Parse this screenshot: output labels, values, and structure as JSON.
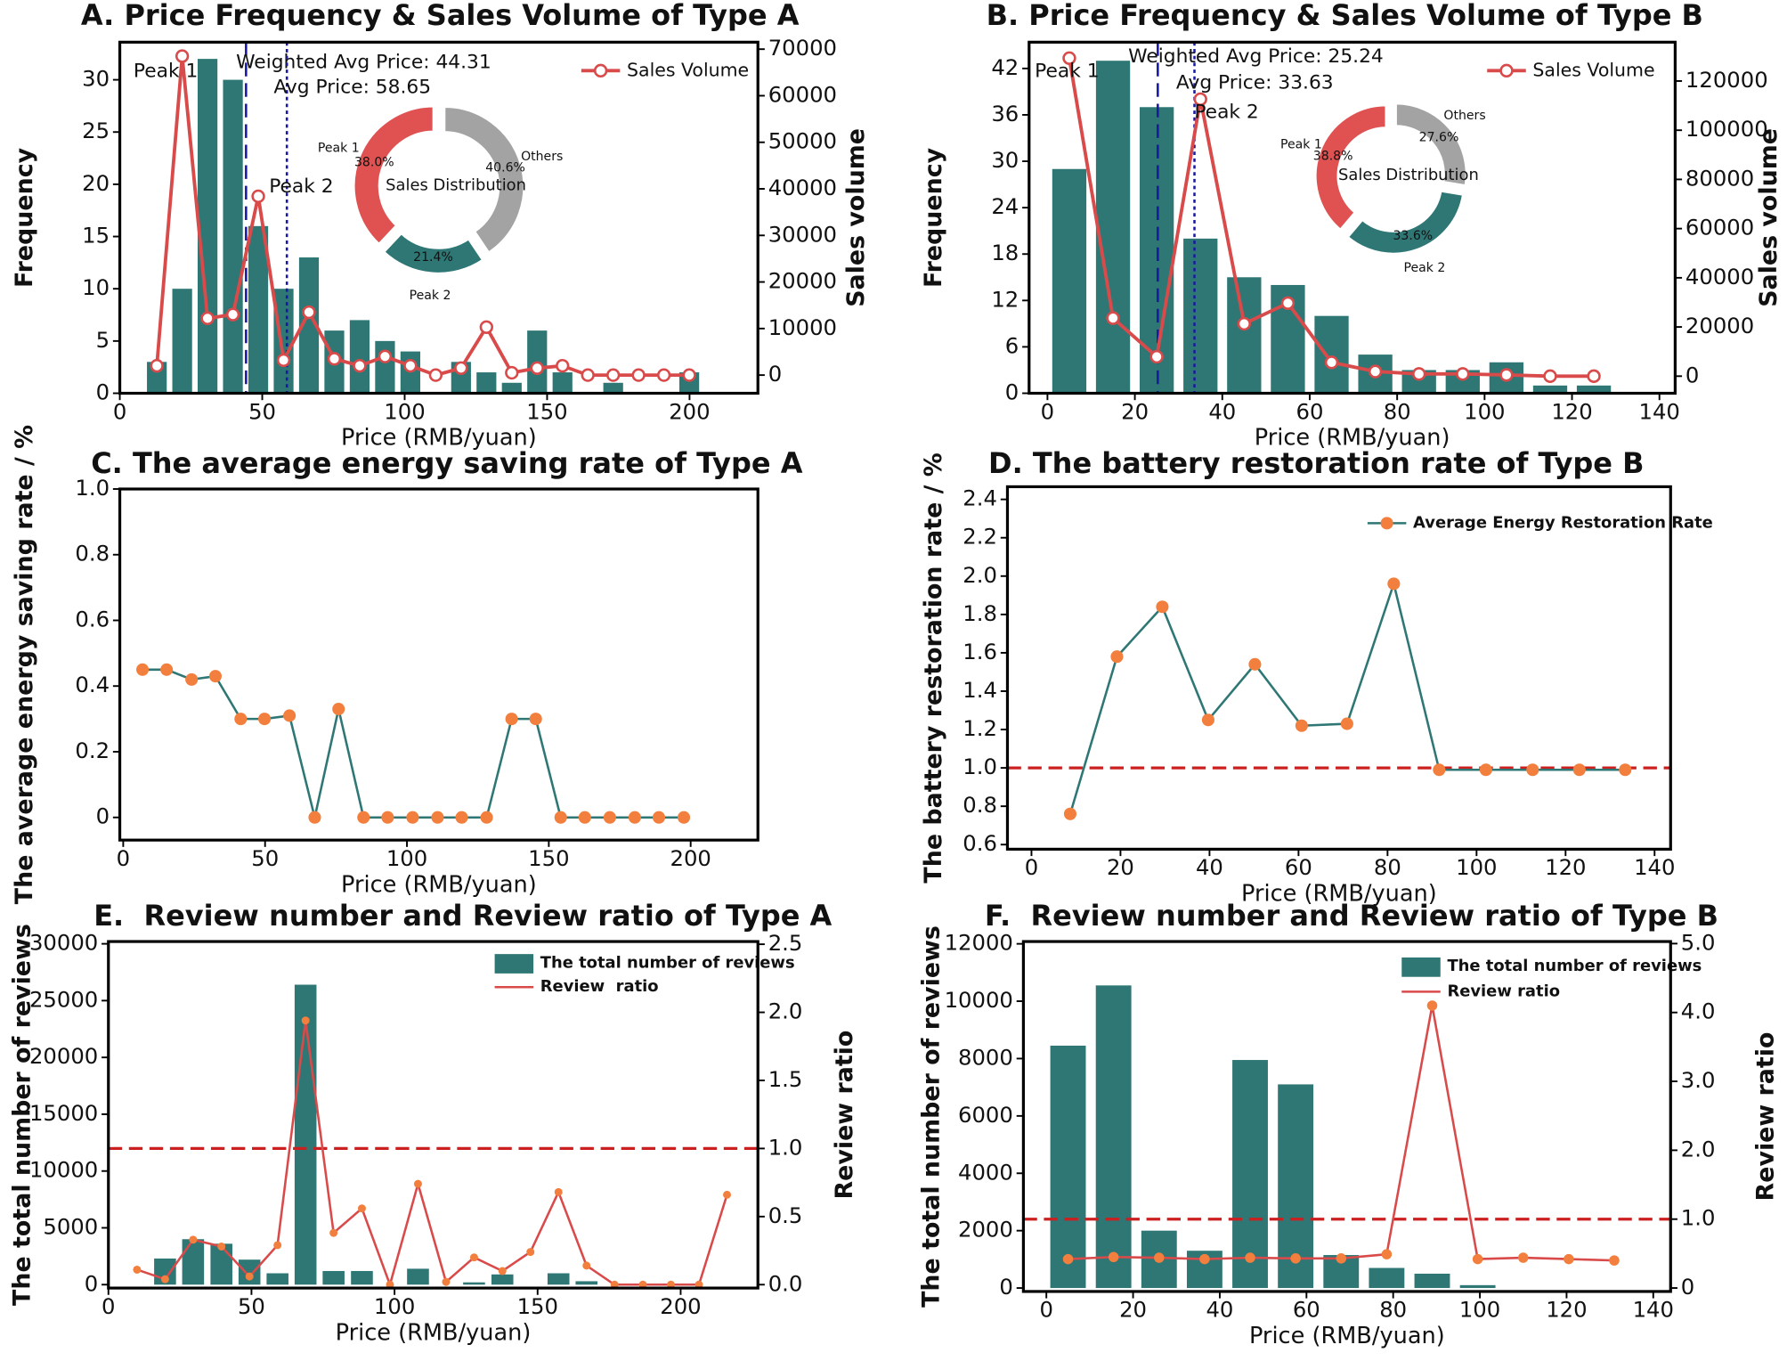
{
  "chart_data": [
    {
      "type": "bar",
      "title": "A. Price Frequency & Sales Volume of Type A",
      "xlabel": "Price (RMB/yuan)",
      "ylabel": "Frequency",
      "y2label": "Sales volume",
      "x": [
        13,
        21.9,
        30.8,
        39.7,
        48.6,
        57.5,
        66.4,
        75.3,
        84.2,
        93.1,
        102,
        110.9,
        119.8,
        128.7,
        137.6,
        146.5,
        155.4,
        164.3,
        173.2,
        182.1,
        191,
        199.9
      ],
      "series": [
        {
          "type": "bar",
          "color": "#2e7775",
          "values": [
            3,
            10,
            32,
            30,
            16,
            10,
            13,
            6,
            7,
            5,
            4,
            0,
            3,
            2,
            1,
            6,
            2,
            0,
            1,
            0,
            0,
            2
          ]
        },
        {
          "type": "line",
          "name": "Sales Volume",
          "color": "#d94a4a",
          "marker": "open",
          "axis": "y2",
          "values": [
            2000,
            68500,
            12200,
            13000,
            38400,
            3200,
            13500,
            3500,
            2000,
            4000,
            2000,
            0,
            1500,
            10300,
            500,
            1500,
            2000,
            0,
            0,
            0,
            0,
            0
          ]
        }
      ],
      "xlim": [
        0,
        224
      ],
      "xticks": [
        0,
        50,
        100,
        150,
        200
      ],
      "ylim": [
        0,
        33.6
      ],
      "yticks": [
        0,
        5,
        10,
        15,
        20,
        25,
        30
      ],
      "y2lim": [
        -3900,
        71500
      ],
      "y2ticks": [
        0,
        10000,
        20000,
        30000,
        40000,
        50000,
        60000,
        70000
      ],
      "legend": "upper right",
      "vlines": [
        {
          "value": 44.31,
          "label": "Weighted Avg Price: 44.31",
          "color": "#1a1aa0",
          "style": "dashed"
        },
        {
          "value": 58.65,
          "label": "Avg Price: 58.65",
          "color": "#1a1aa0",
          "style": "dotted"
        }
      ],
      "annotations": [
        "Peak 1",
        "Peak 2"
      ],
      "inset": {
        "type": "pie",
        "title": "Sales Distribution",
        "categories": [
          "Peak 1",
          "Peak 2",
          "Others"
        ],
        "values": [
          38.0,
          21.4,
          40.6
        ],
        "value_labels": [
          "38.0%",
          "21.4%",
          "40.6%"
        ],
        "colors": [
          "#e05252",
          "#2e7775",
          "#a3a3a3"
        ]
      }
    },
    {
      "type": "bar",
      "title": "B. Price Frequency & Sales Volume of Type B",
      "xlabel": "Price (RMB/yuan)",
      "ylabel": "Frequency",
      "y2label": "Sales volume",
      "x": [
        5,
        15,
        25,
        35,
        45,
        55,
        65,
        75,
        85,
        95,
        105,
        115,
        125
      ],
      "series": [
        {
          "type": "bar",
          "color": "#2e7775",
          "values": [
            29,
            43,
            37,
            20,
            15,
            14,
            10,
            5,
            3,
            3,
            4,
            1,
            1
          ]
        },
        {
          "type": "line",
          "name": "Sales Volume",
          "color": "#d94a4a",
          "marker": "open",
          "axis": "y2",
          "values": [
            129300,
            23600,
            7900,
            112600,
            21300,
            29700,
            5600,
            1900,
            900,
            900,
            500,
            0,
            0
          ]
        }
      ],
      "xlim": [
        -4.2,
        143.6
      ],
      "xticks": [
        0,
        20,
        40,
        60,
        80,
        100,
        120,
        140
      ],
      "ylim": [
        0,
        45.4
      ],
      "yticks": [
        0,
        6,
        12,
        18,
        24,
        30,
        36,
        42
      ],
      "y2lim": [
        -6950,
        135800
      ],
      "y2ticks": [
        0,
        20000,
        40000,
        60000,
        80000,
        100000,
        120000
      ],
      "legend": "upper right",
      "vlines": [
        {
          "value": 25.24,
          "label": "Weighted Avg Price: 25.24",
          "color": "#1a1aa0",
          "style": "dashed"
        },
        {
          "value": 33.63,
          "label": "Avg Price: 33.63",
          "color": "#1a1aa0",
          "style": "dotted"
        }
      ],
      "annotations": [
        "Peak 1",
        "Peak 2"
      ],
      "inset": {
        "type": "pie",
        "title": "Sales Distribution",
        "categories": [
          "Peak 1",
          "Peak 2",
          "Others"
        ],
        "values": [
          38.8,
          33.6,
          27.6
        ],
        "value_labels": [
          "38.8%",
          "33.6%",
          "27.6%"
        ],
        "colors": [
          "#e05252",
          "#2e7775",
          "#a3a3a3"
        ]
      }
    },
    {
      "type": "line",
      "title": "C. The average energy saving rate of Type A",
      "xlabel": "Price (RMB/yuan)",
      "ylabel": "The average energy saving rate / %",
      "x": [
        6.8,
        15.3,
        24.1,
        32.5,
        41.4,
        49.8,
        58.6,
        67.5,
        75.9,
        84.7,
        93.2,
        102,
        110.8,
        119.3,
        128.1,
        136.9,
        145.4,
        154.2,
        162.7,
        171.5,
        180.3,
        188.8,
        197.6
      ],
      "series": [
        {
          "type": "line",
          "color": "#2e7775",
          "marker": "filled",
          "marker_color": "#f27f3d",
          "values": [
            0.45,
            0.45,
            0.42,
            0.43,
            0.3,
            0.3,
            0.31,
            0,
            0.33,
            0,
            0,
            0,
            0,
            0,
            0,
            0.3,
            0.3,
            0,
            0,
            0,
            0,
            0,
            0
          ]
        }
      ],
      "xlim": [
        -1.2,
        223.7
      ],
      "xticks": [
        0,
        50,
        100,
        150,
        200
      ],
      "ylim": [
        -0.069,
        1.0
      ],
      "yticks": [
        0,
        0.2,
        0.4,
        0.6,
        0.8,
        {
          "value": 1,
          "label": "1.0"
        }
      ]
    },
    {
      "type": "line",
      "title": "D. The battery restoration rate of Type B",
      "xlabel": "Price (RMB/yuan)",
      "ylabel": "The battery restoration rate / %",
      "x": [
        8.7,
        19.2,
        29.4,
        39.7,
        50.2,
        60.7,
        70.9,
        81.4,
        91.6,
        102.1,
        112.6,
        123.1,
        133.4
      ],
      "series": [
        {
          "type": "line",
          "name": "Average Energy Restoration Rate",
          "color": "#2e7775",
          "marker": "filled",
          "marker_color": "#f27f3d",
          "values": [
            0.76,
            1.58,
            1.84,
            1.25,
            1.54,
            1.22,
            1.23,
            1.96,
            0.99,
            0.99,
            0.99,
            0.99,
            0.99
          ]
        }
      ],
      "xlim": [
        -5.4,
        143.6
      ],
      "xticks": [
        0,
        20,
        40,
        60,
        80,
        100,
        120,
        140
      ],
      "ylim": [
        0.576,
        2.466
      ],
      "yticks": [
        0.6,
        0.8,
        {
          "value": 1,
          "label": "1.0"
        },
        1.2,
        1.4,
        1.6,
        1.8,
        {
          "value": 2,
          "label": "2.0"
        },
        2.2,
        2.4
      ],
      "legend": "upper right",
      "hlines": [
        {
          "value": 1,
          "color": "#cc2020",
          "style": "dashed"
        }
      ]
    },
    {
      "type": "bar",
      "title": "E.  Review number and Review ratio of Type A",
      "xlabel": "Price (RMB/yuan)",
      "ylabel": "The total number of reviews",
      "y2label": "Review ratio",
      "x": [
        10,
        19.8,
        29.6,
        39.5,
        49.3,
        59.1,
        68.9,
        78.7,
        88.6,
        98.4,
        108.2,
        118,
        127.8,
        137.7,
        147.5,
        157.3,
        167.1,
        176.9,
        186.8,
        196.6,
        206.4,
        216.2
      ],
      "series": [
        {
          "type": "bar",
          "name": "The total number of reviews",
          "color": "#2e7775",
          "values": [
            0,
            2300,
            4000,
            3600,
            2200,
            1000,
            26400,
            1200,
            1200,
            0,
            1400,
            0,
            200,
            900,
            0,
            1000,
            300,
            0,
            0,
            0,
            0,
            0
          ]
        },
        {
          "type": "line",
          "name": "Review  ratio",
          "color": "#d94a4a",
          "marker": "filled",
          "marker_color": "#f27f3d",
          "axis": "y2",
          "values": [
            0.11,
            0.04,
            0.33,
            0.28,
            0.06,
            0.29,
            1.94,
            0.38,
            0.56,
            0,
            0.74,
            0.02,
            0.2,
            0.1,
            0.24,
            0.68,
            0.14,
            0,
            0,
            0,
            0,
            0.66
          ]
        }
      ],
      "xlim": [
        0,
        227
      ],
      "xticks": [
        0,
        50,
        100,
        150,
        200
      ],
      "ylim": [
        -300,
        30200
      ],
      "yticks": [
        0,
        5000,
        10000,
        15000,
        20000,
        25000,
        30000
      ],
      "y2lim": [
        -0.025,
        2.52
      ],
      "y2ticks": [
        {
          "value": 0,
          "label": "0.0"
        },
        0.5,
        {
          "value": 1,
          "label": "1.0"
        },
        1.5,
        {
          "value": 2,
          "label": "2.0"
        },
        2.5
      ],
      "legend": "upper right",
      "hlines": [
        {
          "value": 1,
          "color": "#cc2020",
          "style": "dashed",
          "axis": "y2"
        }
      ]
    },
    {
      "type": "bar",
      "title": "F.  Review number and Review ratio of Type B",
      "xlabel": "Price (RMB/yuan)",
      "ylabel": "The total number of reviews",
      "y2label": "Review ratio",
      "x": [
        5,
        15.5,
        26,
        36.5,
        47,
        57.5,
        68,
        78.5,
        89,
        99.5,
        110,
        120.5,
        131
      ],
      "series": [
        {
          "type": "bar",
          "name": "The total number of reviews",
          "color": "#2e7775",
          "values": [
            8450,
            10550,
            2000,
            1300,
            7950,
            7100,
            1150,
            700,
            500,
            100,
            null,
            null,
            null
          ]
        },
        {
          "type": "line",
          "name": "Review ratio",
          "color": "#d94a4a",
          "marker": "filled",
          "marker_color": "#f27f3d",
          "axis": "y2",
          "values": [
            0.42,
            0.45,
            0.44,
            0.42,
            0.44,
            0.43,
            0.43,
            0.49,
            4.1,
            0.42,
            0.44,
            0.42,
            0.4
          ]
        }
      ],
      "xlim": [
        -5.3,
        144
      ],
      "xticks": [
        0,
        20,
        40,
        60,
        80,
        100,
        120,
        140
      ],
      "ylim": [
        -120,
        12080
      ],
      "yticks": [
        0,
        2000,
        4000,
        6000,
        8000,
        10000,
        12000
      ],
      "y2lim": [
        -0.05,
        5.03
      ],
      "y2ticks": [
        0,
        {
          "value": 1,
          "label": "1.0"
        },
        {
          "value": 2,
          "label": "2.0"
        },
        {
          "value": 3,
          "label": "3.0"
        },
        {
          "value": 4,
          "label": "4.0"
        },
        {
          "value": 5,
          "label": "5.0"
        }
      ],
      "legend": "upper right",
      "hlines": [
        {
          "value": 1,
          "color": "#cc2020",
          "style": "dashed",
          "axis": "y2"
        }
      ]
    }
  ]
}
